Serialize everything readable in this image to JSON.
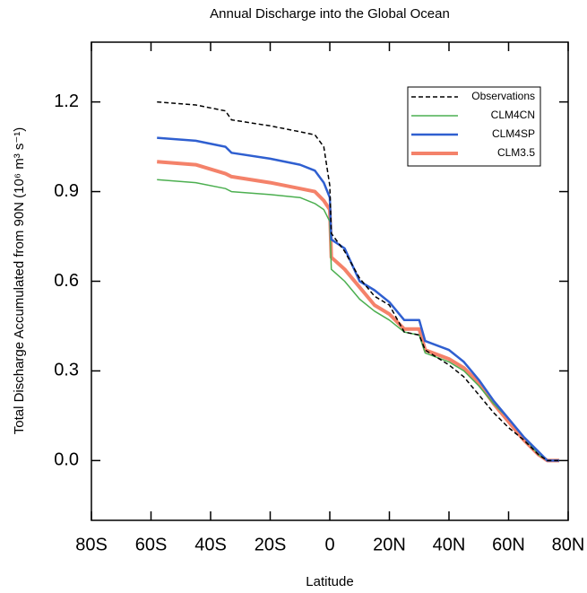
{
  "chart_data": {
    "type": "line",
    "title": "Annual Discharge into the Global Ocean",
    "x_label": "Latitude",
    "y_label": "Total Discharge Accumulated from 90N (10⁶ m³ s⁻¹)",
    "x": [
      -58,
      -45,
      -35,
      -33,
      -20,
      -10,
      -5,
      -2,
      0,
      0.5,
      5,
      10,
      15,
      20,
      25,
      30,
      32,
      40,
      45,
      50,
      55,
      60,
      65,
      70,
      73,
      77
    ],
    "series": [
      {
        "name": "Observations",
        "color": "#000000",
        "dash": true,
        "width": 1.5,
        "values": [
          1.2,
          1.19,
          1.17,
          1.14,
          1.12,
          1.1,
          1.09,
          1.05,
          0.92,
          0.76,
          0.7,
          0.61,
          0.55,
          0.52,
          0.43,
          0.42,
          0.37,
          0.32,
          0.28,
          0.22,
          0.16,
          0.11,
          0.07,
          0.02,
          0.0,
          0.0
        ]
      },
      {
        "name": "CLM4CN",
        "color": "#4caf50",
        "dash": false,
        "width": 1.5,
        "values": [
          0.94,
          0.93,
          0.91,
          0.9,
          0.89,
          0.88,
          0.86,
          0.84,
          0.8,
          0.64,
          0.6,
          0.54,
          0.5,
          0.47,
          0.43,
          0.42,
          0.36,
          0.33,
          0.3,
          0.25,
          0.19,
          0.14,
          0.08,
          0.02,
          0.0,
          0.0
        ]
      },
      {
        "name": "CLM4SP",
        "color": "#2f5fd0",
        "dash": false,
        "width": 2.5,
        "values": [
          1.08,
          1.07,
          1.05,
          1.03,
          1.01,
          0.99,
          0.97,
          0.93,
          0.88,
          0.74,
          0.71,
          0.6,
          0.57,
          0.53,
          0.47,
          0.47,
          0.4,
          0.37,
          0.33,
          0.27,
          0.2,
          0.14,
          0.08,
          0.03,
          0.0,
          0.0
        ]
      },
      {
        "name": "CLM3.5",
        "color": "#f4826a",
        "dash": false,
        "width": 4,
        "values": [
          1.0,
          0.99,
          0.96,
          0.95,
          0.93,
          0.91,
          0.9,
          0.87,
          0.84,
          0.68,
          0.64,
          0.58,
          0.52,
          0.49,
          0.44,
          0.44,
          0.37,
          0.34,
          0.31,
          0.26,
          0.19,
          0.13,
          0.07,
          0.02,
          0.0,
          0.0
        ]
      }
    ],
    "xlim": [
      -80,
      80
    ],
    "xticks": [
      {
        "value": -80,
        "label": "80S"
      },
      {
        "value": -60,
        "label": "60S"
      },
      {
        "value": -40,
        "label": "40S"
      },
      {
        "value": -20,
        "label": "20S"
      },
      0,
      {
        "value": 20,
        "label": "20N"
      },
      {
        "value": 40,
        "label": "40N"
      },
      {
        "value": 60,
        "label": "60N"
      },
      {
        "value": 80,
        "label": "80N"
      }
    ],
    "ylim": [
      -0.2,
      1.4
    ],
    "yticks": [
      {
        "value": 0,
        "label": "0.0"
      },
      0.3,
      0.6,
      0.9,
      1.2
    ],
    "legend": "top-right"
  }
}
